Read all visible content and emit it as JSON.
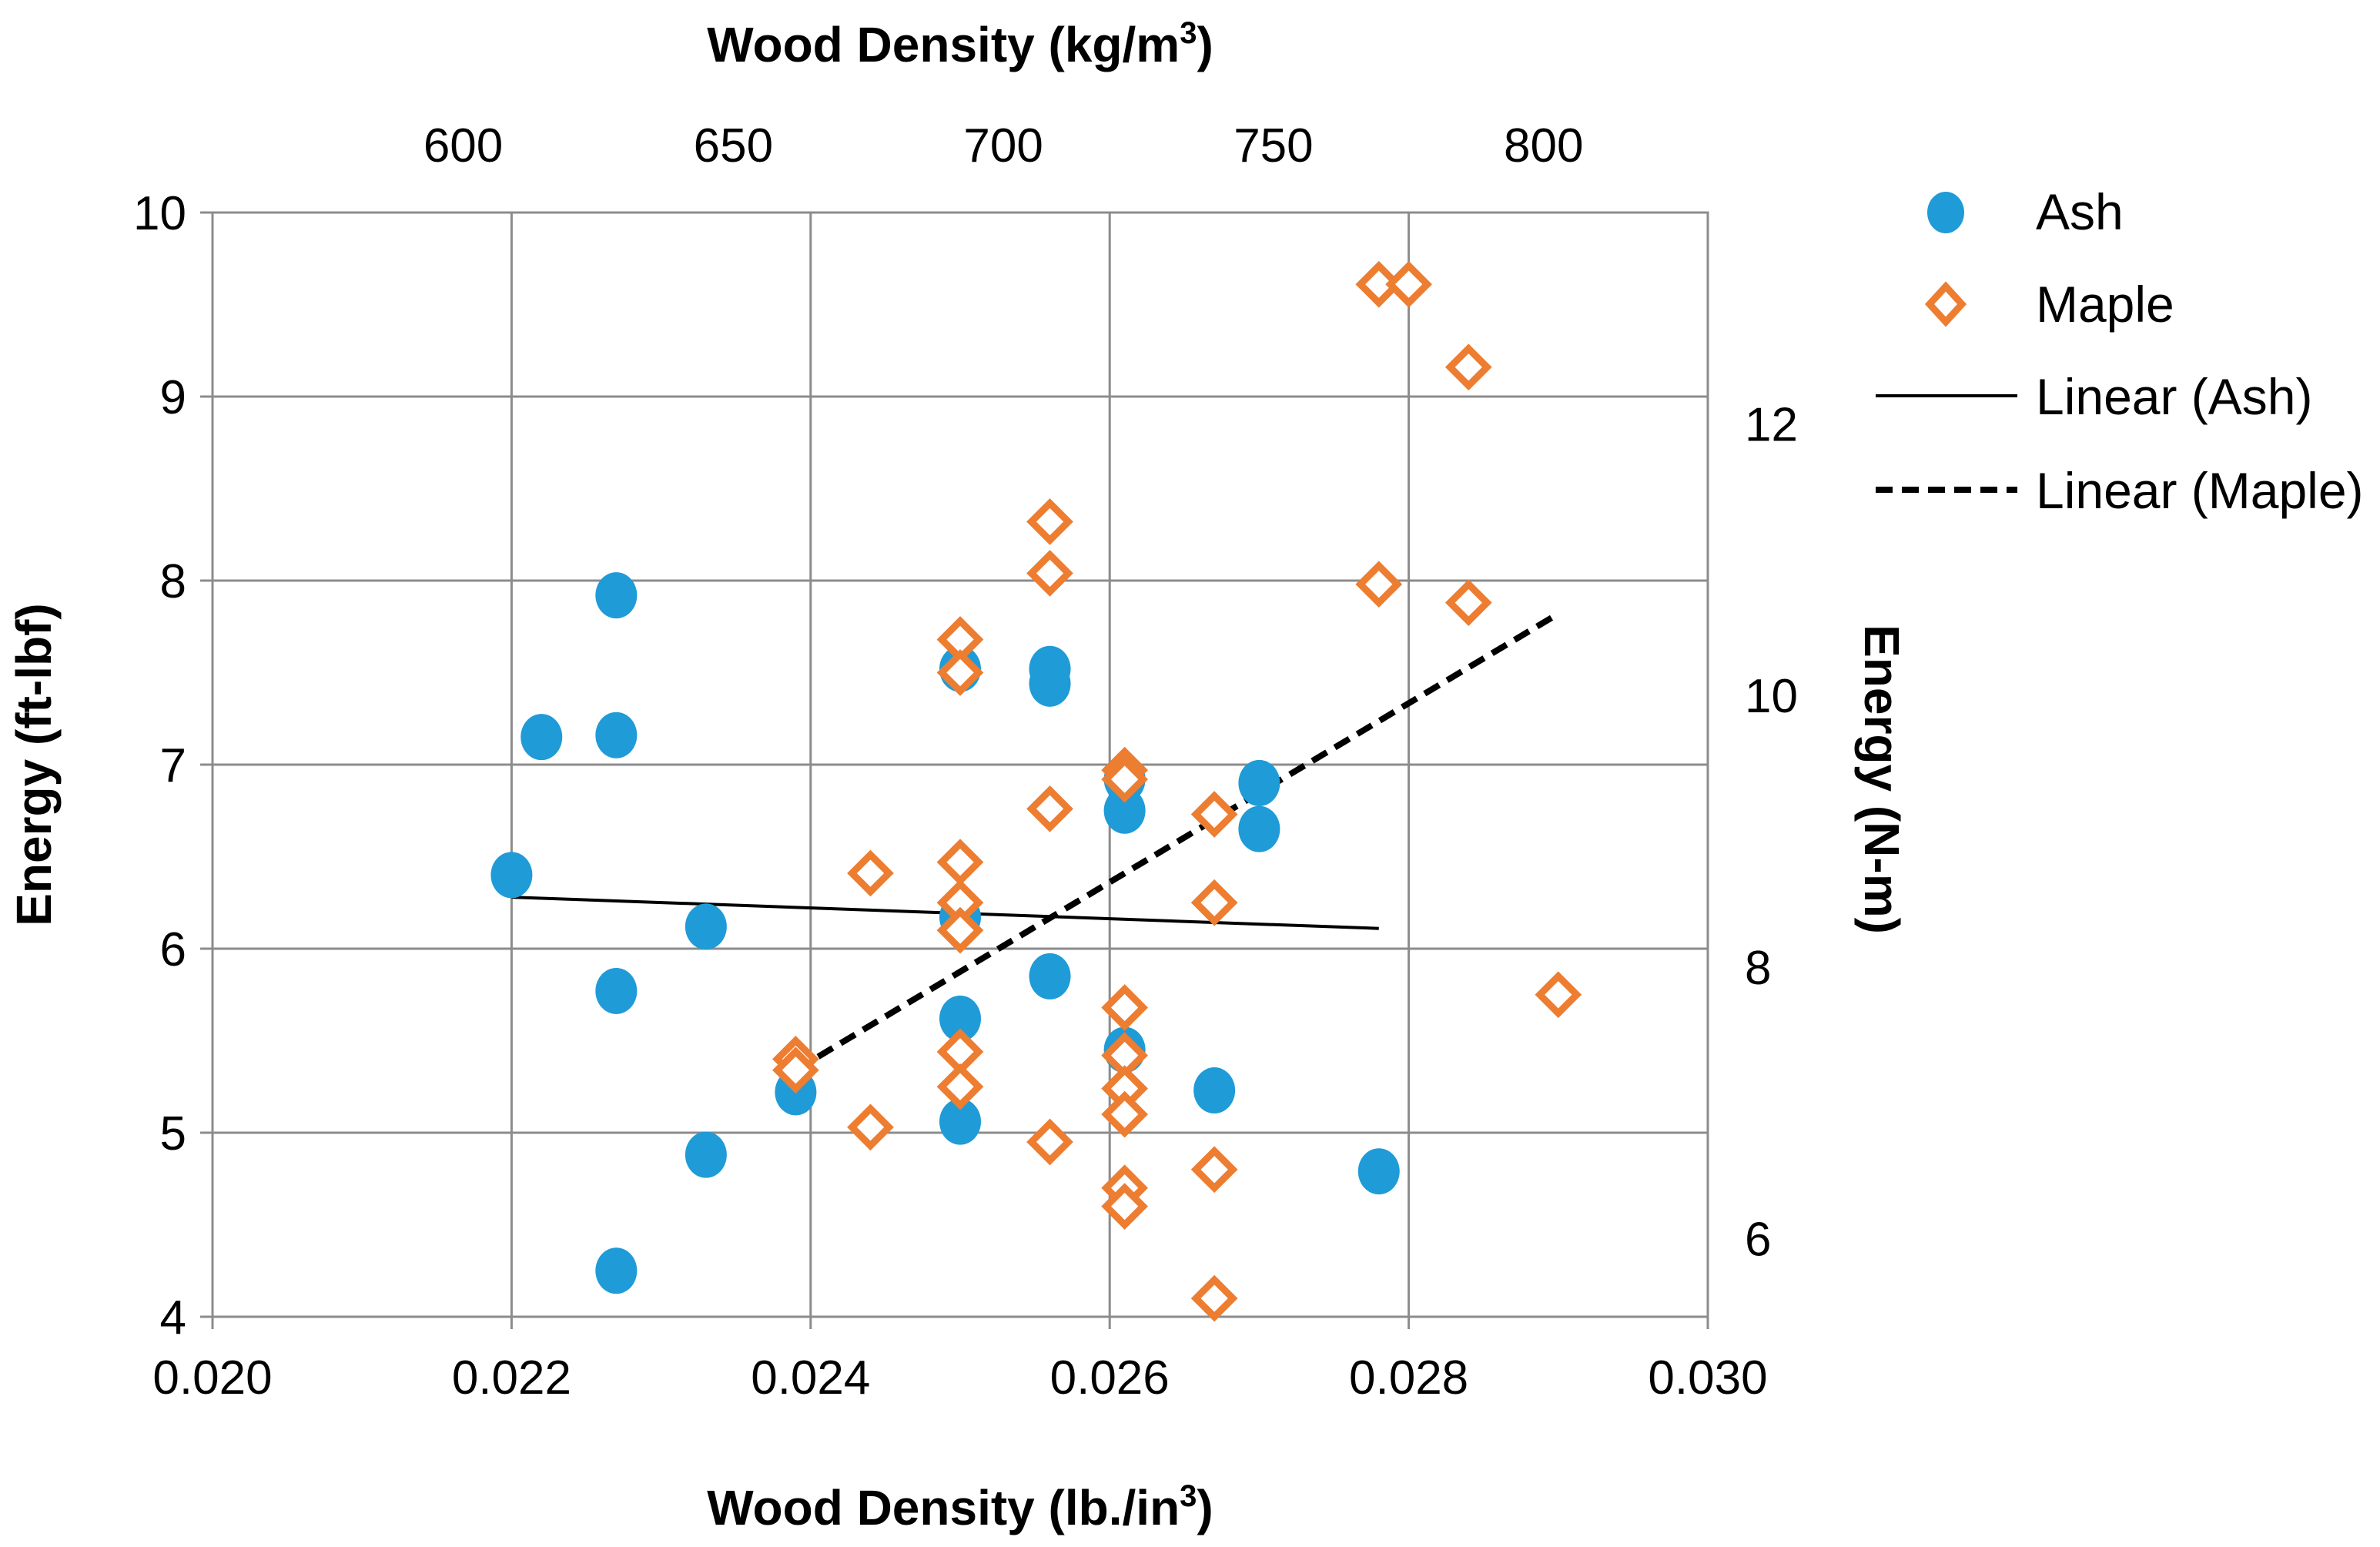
{
  "chart_data": {
    "type": "scatter",
    "top_axis": {
      "title_main": "Wood Density (kg/m",
      "title_sup": "3",
      "title_end": ")",
      "ticks": [
        600,
        650,
        700,
        750,
        800
      ],
      "tick_labels": [
        "600",
        "650",
        "700",
        "750",
        "800"
      ]
    },
    "bottom_axis": {
      "title_main": "Wood Density (lb./in",
      "title_sup": "3",
      "title_end": ")",
      "range": [
        0.02,
        0.03
      ],
      "ticks": [
        0.02,
        0.022,
        0.024,
        0.026,
        0.028,
        0.03
      ],
      "tick_labels": [
        "0.020",
        "0.022",
        "0.024",
        "0.026",
        "0.028",
        "0.030"
      ]
    },
    "left_axis": {
      "title": "Energy (ft-lbf)",
      "range": [
        4,
        10
      ],
      "ticks": [
        4,
        5,
        6,
        7,
        8,
        9,
        10
      ],
      "tick_labels": [
        "4",
        "5",
        "6",
        "7",
        "8",
        "9",
        "10"
      ]
    },
    "right_axis": {
      "title": "Energy (N-m)",
      "ticks": [
        6,
        8,
        10,
        12
      ],
      "tick_labels": [
        "6",
        "8",
        "10",
        "12"
      ]
    },
    "grid": true,
    "legend_position": "right",
    "legend": {
      "ash": "Ash",
      "maple": "Maple",
      "linear_ash": "Linear (Ash)",
      "linear_maple": "Linear (Maple)"
    },
    "series": [
      {
        "name": "Ash",
        "marker": "circle",
        "color": "#1f9bd8",
        "points": [
          [
            0.022,
            6.4
          ],
          [
            0.0222,
            7.15
          ],
          [
            0.0227,
            7.92
          ],
          [
            0.0227,
            7.16
          ],
          [
            0.0227,
            5.77
          ],
          [
            0.0227,
            4.25
          ],
          [
            0.0233,
            6.12
          ],
          [
            0.0233,
            4.88
          ],
          [
            0.0239,
            5.22
          ],
          [
            0.025,
            7.52
          ],
          [
            0.025,
            6.17
          ],
          [
            0.025,
            5.62
          ],
          [
            0.025,
            5.06
          ],
          [
            0.0256,
            7.52
          ],
          [
            0.0256,
            7.44
          ],
          [
            0.0256,
            5.85
          ],
          [
            0.0261,
            6.92
          ],
          [
            0.0261,
            6.75
          ],
          [
            0.0261,
            5.45
          ],
          [
            0.0267,
            5.23
          ],
          [
            0.027,
            6.9
          ],
          [
            0.027,
            6.65
          ],
          [
            0.0278,
            4.79
          ]
        ]
      },
      {
        "name": "Maple",
        "marker": "diamond",
        "color": "#ed7d31",
        "points": [
          [
            0.0239,
            5.4
          ],
          [
            0.0239,
            5.34
          ],
          [
            0.0244,
            6.41
          ],
          [
            0.0244,
            5.03
          ],
          [
            0.025,
            7.68
          ],
          [
            0.025,
            7.5
          ],
          [
            0.025,
            6.47
          ],
          [
            0.025,
            6.25
          ],
          [
            0.025,
            6.1
          ],
          [
            0.025,
            5.44
          ],
          [
            0.025,
            5.25
          ],
          [
            0.0256,
            8.32
          ],
          [
            0.0256,
            8.04
          ],
          [
            0.0256,
            6.76
          ],
          [
            0.0256,
            4.95
          ],
          [
            0.0261,
            6.97
          ],
          [
            0.0261,
            6.92
          ],
          [
            0.0261,
            5.68
          ],
          [
            0.0261,
            5.42
          ],
          [
            0.0261,
            5.24
          ],
          [
            0.0261,
            5.1
          ],
          [
            0.0261,
            4.7
          ],
          [
            0.0261,
            4.6
          ],
          [
            0.0267,
            6.73
          ],
          [
            0.0267,
            6.25
          ],
          [
            0.0267,
            4.8
          ],
          [
            0.0267,
            4.1
          ],
          [
            0.0278,
            9.61
          ],
          [
            0.0278,
            7.98
          ],
          [
            0.028,
            9.61
          ],
          [
            0.0284,
            9.16
          ],
          [
            0.0284,
            7.88
          ],
          [
            0.029,
            5.75
          ]
        ]
      }
    ],
    "trendlines": [
      {
        "name": "Linear (Ash)",
        "style": "solid",
        "color": "#000000",
        "x": [
          0.022,
          0.0278
        ],
        "y": [
          6.28,
          6.11
        ]
      },
      {
        "name": "Linear (Maple)",
        "style": "dashed",
        "color": "#000000",
        "x": [
          0.0239,
          0.029
        ],
        "y": [
          5.34,
          7.82
        ]
      }
    ]
  }
}
